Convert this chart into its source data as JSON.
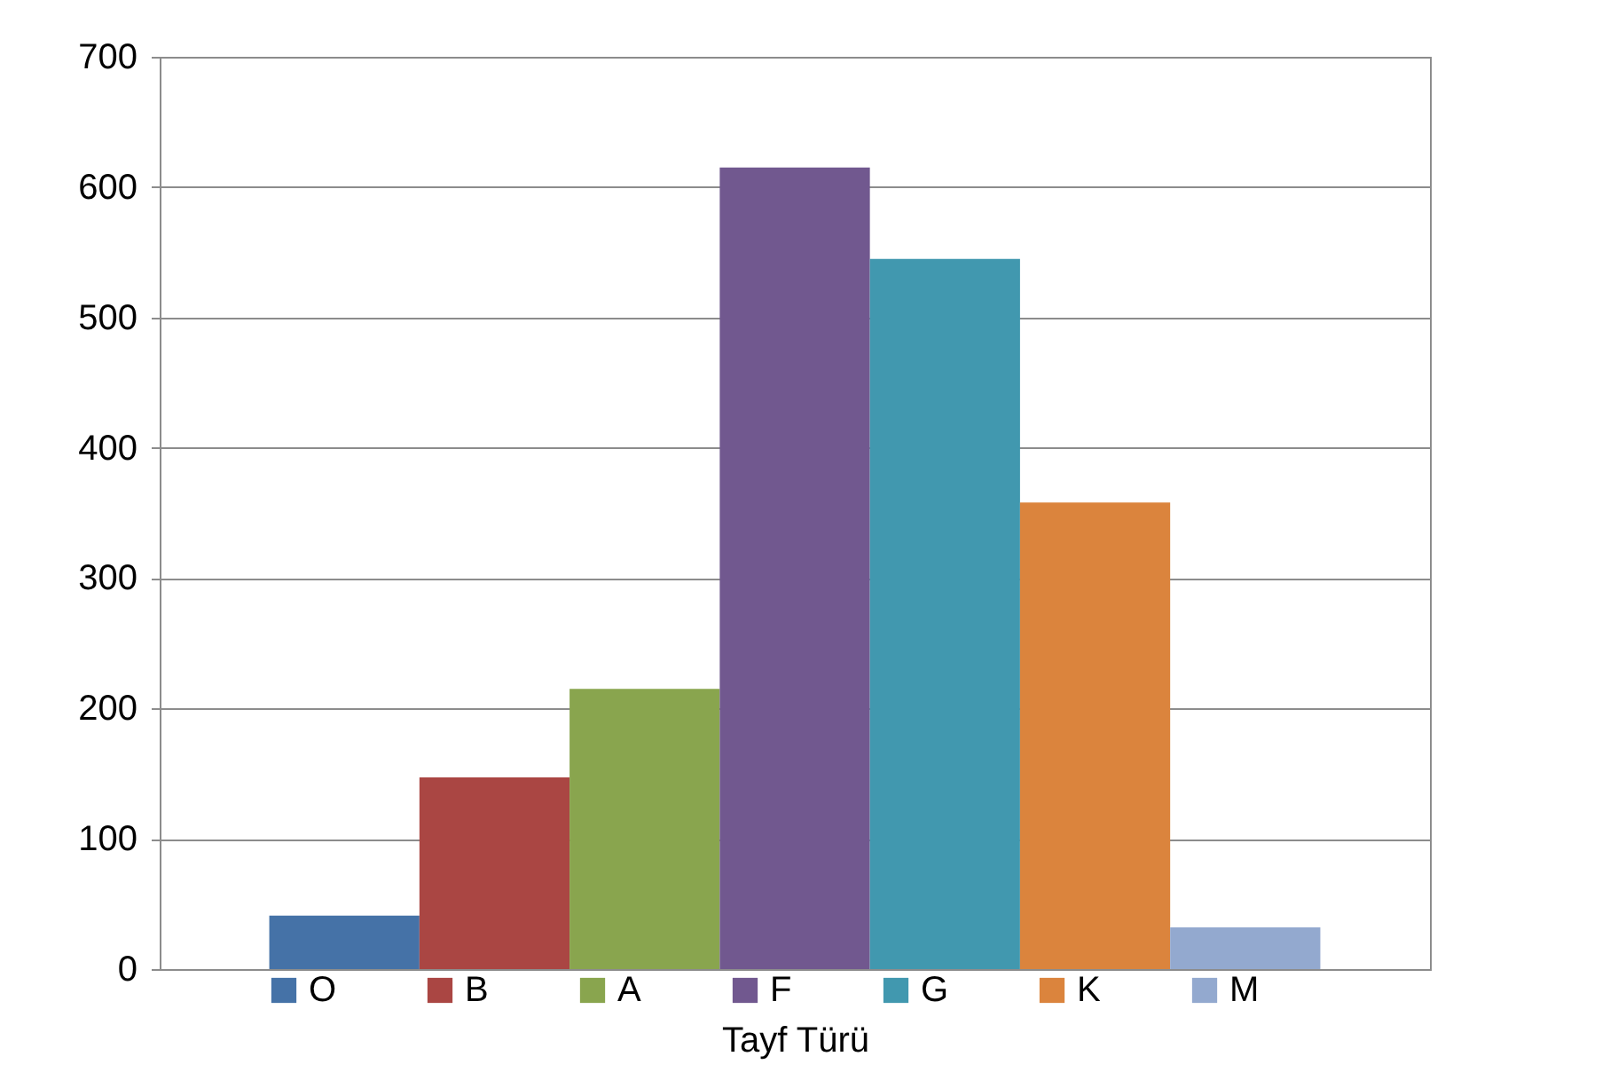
{
  "chart_data": {
    "type": "bar",
    "xlabel": "Tayf Türü",
    "categories": [
      null
    ],
    "series": [
      {
        "name": "O",
        "color": "#4572a7",
        "values": [
          41
        ]
      },
      {
        "name": "B",
        "color": "#aa4643",
        "values": [
          147
        ]
      },
      {
        "name": "A",
        "color": "#89a54e",
        "values": [
          215
        ]
      },
      {
        "name": "F",
        "color": "#71588f",
        "values": [
          615
        ]
      },
      {
        "name": "G",
        "color": "#4198af",
        "values": [
          545
        ]
      },
      {
        "name": "K",
        "color": "#db843d",
        "values": [
          358
        ]
      },
      {
        "name": "M",
        "color": "#93a9cf",
        "values": [
          32
        ]
      }
    ],
    "ylim": [
      0,
      700
    ],
    "yticks": [
      0,
      100,
      200,
      300,
      400,
      500,
      600,
      700
    ],
    "grid": "y",
    "legend": "bottom"
  }
}
